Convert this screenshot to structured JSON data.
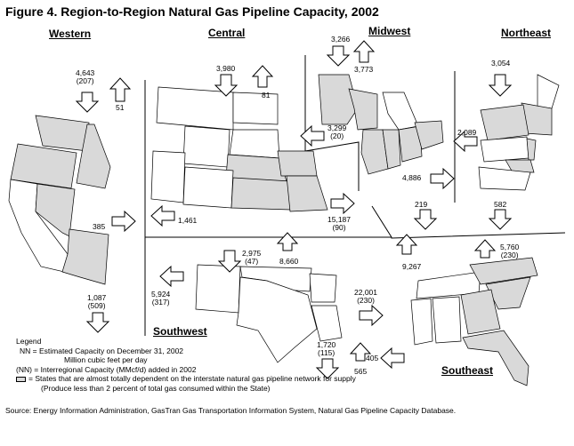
{
  "title": "Figure 4. Region-to-Region Natural Gas Pipeline Capacity, 2002",
  "regions": {
    "western": "Western",
    "central": "Central",
    "midwest": "Midwest",
    "northeast": "Northeast",
    "southwest": "Southwest",
    "southeast": "Southeast"
  },
  "flows": {
    "western_in": {
      "n": "4,643",
      "nn": "(207)"
    },
    "western_out_north": {
      "n": "51"
    },
    "western_east": {
      "n": "385"
    },
    "western_south": {
      "n": "1,087",
      "nn": "(509)"
    },
    "central_in": {
      "n": "3,980"
    },
    "central_out": {
      "n": "81"
    },
    "central_west": {
      "n": "1,461"
    },
    "central_east": {
      "n": "3,299",
      "nn": "(20)"
    },
    "central_southeast": {
      "n": "15,187",
      "nn": "(90)"
    },
    "midwest_in": {
      "n": "3,266"
    },
    "midwest_out": {
      "n": "3,773"
    },
    "midwest_east": {
      "n": "4,886"
    },
    "midwest_south": {
      "n": "219"
    },
    "northeast_in": {
      "n": "3,054"
    },
    "northeast_west": {
      "n": "2,089"
    },
    "northeast_south": {
      "n": "582"
    },
    "southwest_in": {
      "n": "2,975",
      "nn": "(47)"
    },
    "southwest_north": {
      "n": "8,660"
    },
    "southwest_west": {
      "n": "5,924",
      "nn": "(317)"
    },
    "southwest_east": {
      "n": "22,001",
      "nn": "(230)"
    },
    "southwest_south": {
      "n": "1,720",
      "nn": "(115)"
    },
    "southwest_up": {
      "n": "565"
    },
    "southeast_north": {
      "n": "9,267"
    },
    "southeast_out": {
      "n": "5,760",
      "nn": "(230)"
    },
    "southeast_west": {
      "n": "405"
    }
  },
  "legend": {
    "heading": "Legend",
    "line1": "NN  = Estimated Capacity on December 31, 2002",
    "line1b": "Million cubic feet per day",
    "line2": "(NN)  = Interregional Capacity (MMcf/d) added in 2002",
    "line3": "= States that are almost totally dependent on the interstate natural gas pipeline network for supply",
    "line3b": "(Produce less than 2 percent of total gas consumed within the State)"
  },
  "source": "Source: Energy Information Administration, GasTran Gas Transportation Information System, Natural Gas Pipeline Capacity Database.",
  "colors": {
    "dependent_state": "#d9d9d9",
    "other_state": "#ffffff"
  }
}
